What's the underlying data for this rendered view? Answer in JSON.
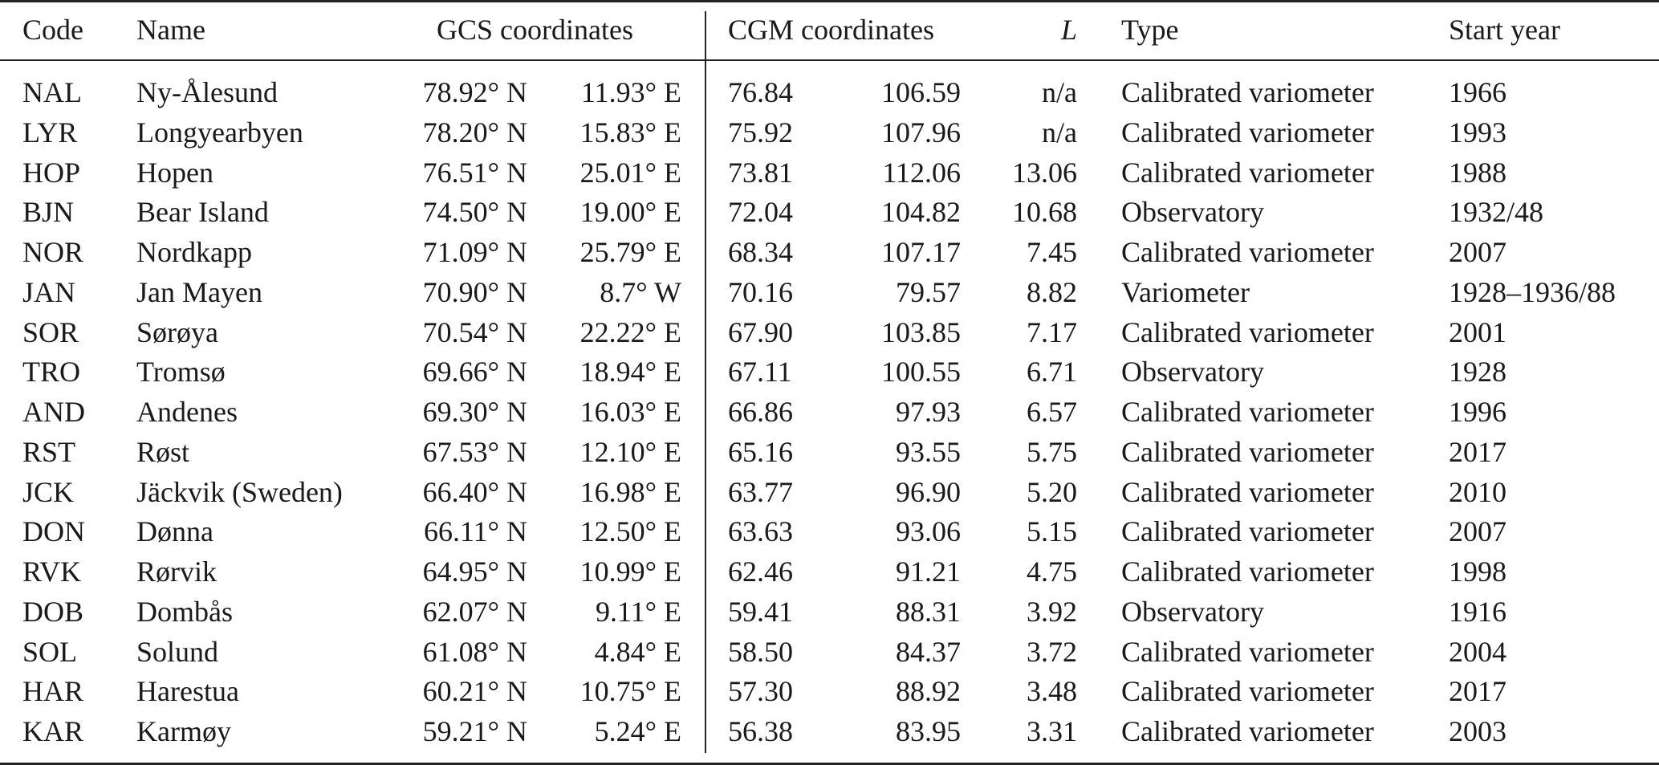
{
  "header": {
    "code": "Code",
    "name": "Name",
    "gcs": "GCS coordinates",
    "cgm": "CGM coordinates",
    "l": "L",
    "type": "Type",
    "start_year": "Start year"
  },
  "rows": [
    {
      "code": "NAL",
      "name": "Ny-Ålesund",
      "lat": "78.92° N",
      "lon": "11.93° E",
      "mlat": "76.84",
      "mlon": "106.59",
      "l": "n/a",
      "type": "Calibrated variometer",
      "year": "1966"
    },
    {
      "code": "LYR",
      "name": "Longyearbyen",
      "lat": "78.20° N",
      "lon": "15.83° E",
      "mlat": "75.92",
      "mlon": "107.96",
      "l": "n/a",
      "type": "Calibrated variometer",
      "year": "1993"
    },
    {
      "code": "HOP",
      "name": "Hopen",
      "lat": "76.51° N",
      "lon": "25.01° E",
      "mlat": "73.81",
      "mlon": "112.06",
      "l": "13.06",
      "type": "Calibrated variometer",
      "year": "1988"
    },
    {
      "code": "BJN",
      "name": "Bear Island",
      "lat": "74.50° N",
      "lon": "19.00° E",
      "mlat": "72.04",
      "mlon": "104.82",
      "l": "10.68",
      "type": "Observatory",
      "year": "1932/48"
    },
    {
      "code": "NOR",
      "name": "Nordkapp",
      "lat": "71.09° N",
      "lon": "25.79° E",
      "mlat": "68.34",
      "mlon": "107.17",
      "l": "7.45",
      "type": "Calibrated variometer",
      "year": "2007"
    },
    {
      "code": "JAN",
      "name": "Jan Mayen",
      "lat": "70.90° N",
      "lon": "8.7° W",
      "mlat": "70.16",
      "mlon": "79.57",
      "l": "8.82",
      "type": "Variometer",
      "year": "1928–1936/88"
    },
    {
      "code": "SOR",
      "name": "Sørøya",
      "lat": "70.54° N",
      "lon": "22.22° E",
      "mlat": "67.90",
      "mlon": "103.85",
      "l": "7.17",
      "type": "Calibrated variometer",
      "year": "2001"
    },
    {
      "code": "TRO",
      "name": "Tromsø",
      "lat": "69.66° N",
      "lon": "18.94° E",
      "mlat": "67.11",
      "mlon": "100.55",
      "l": "6.71",
      "type": "Observatory",
      "year": "1928"
    },
    {
      "code": "AND",
      "name": "Andenes",
      "lat": "69.30° N",
      "lon": "16.03° E",
      "mlat": "66.86",
      "mlon": "97.93",
      "l": "6.57",
      "type": "Calibrated variometer",
      "year": "1996"
    },
    {
      "code": "RST",
      "name": "Røst",
      "lat": "67.53° N",
      "lon": "12.10° E",
      "mlat": "65.16",
      "mlon": "93.55",
      "l": "5.75",
      "type": "Calibrated variometer",
      "year": "2017"
    },
    {
      "code": "JCK",
      "name": "Jäckvik (Sweden)",
      "lat": "66.40° N",
      "lon": "16.98° E",
      "mlat": "63.77",
      "mlon": "96.90",
      "l": "5.20",
      "type": "Calibrated variometer",
      "year": "2010"
    },
    {
      "code": "DON",
      "name": "Dønna",
      "lat": "66.11° N",
      "lon": "12.50° E",
      "mlat": "63.63",
      "mlon": "93.06",
      "l": "5.15",
      "type": "Calibrated variometer",
      "year": "2007"
    },
    {
      "code": "RVK",
      "name": "Rørvik",
      "lat": "64.95° N",
      "lon": "10.99° E",
      "mlat": "62.46",
      "mlon": "91.21",
      "l": "4.75",
      "type": "Calibrated variometer",
      "year": "1998"
    },
    {
      "code": "DOB",
      "name": "Dombås",
      "lat": "62.07° N",
      "lon": "9.11° E",
      "mlat": "59.41",
      "mlon": "88.31",
      "l": "3.92",
      "type": "Observatory",
      "year": "1916"
    },
    {
      "code": "SOL",
      "name": "Solund",
      "lat": "61.08° N",
      "lon": "4.84° E",
      "mlat": "58.50",
      "mlon": "84.37",
      "l": "3.72",
      "type": "Calibrated variometer",
      "year": "2004"
    },
    {
      "code": "HAR",
      "name": "Harestua",
      "lat": "60.21° N",
      "lon": "10.75° E",
      "mlat": "57.30",
      "mlon": "88.92",
      "l": "3.48",
      "type": "Calibrated variometer",
      "year": "2017"
    },
    {
      "code": "KAR",
      "name": "Karmøy",
      "lat": "59.21° N",
      "lon": "5.24° E",
      "mlat": "56.38",
      "mlon": "83.95",
      "l": "3.31",
      "type": "Calibrated variometer",
      "year": "2003"
    }
  ]
}
